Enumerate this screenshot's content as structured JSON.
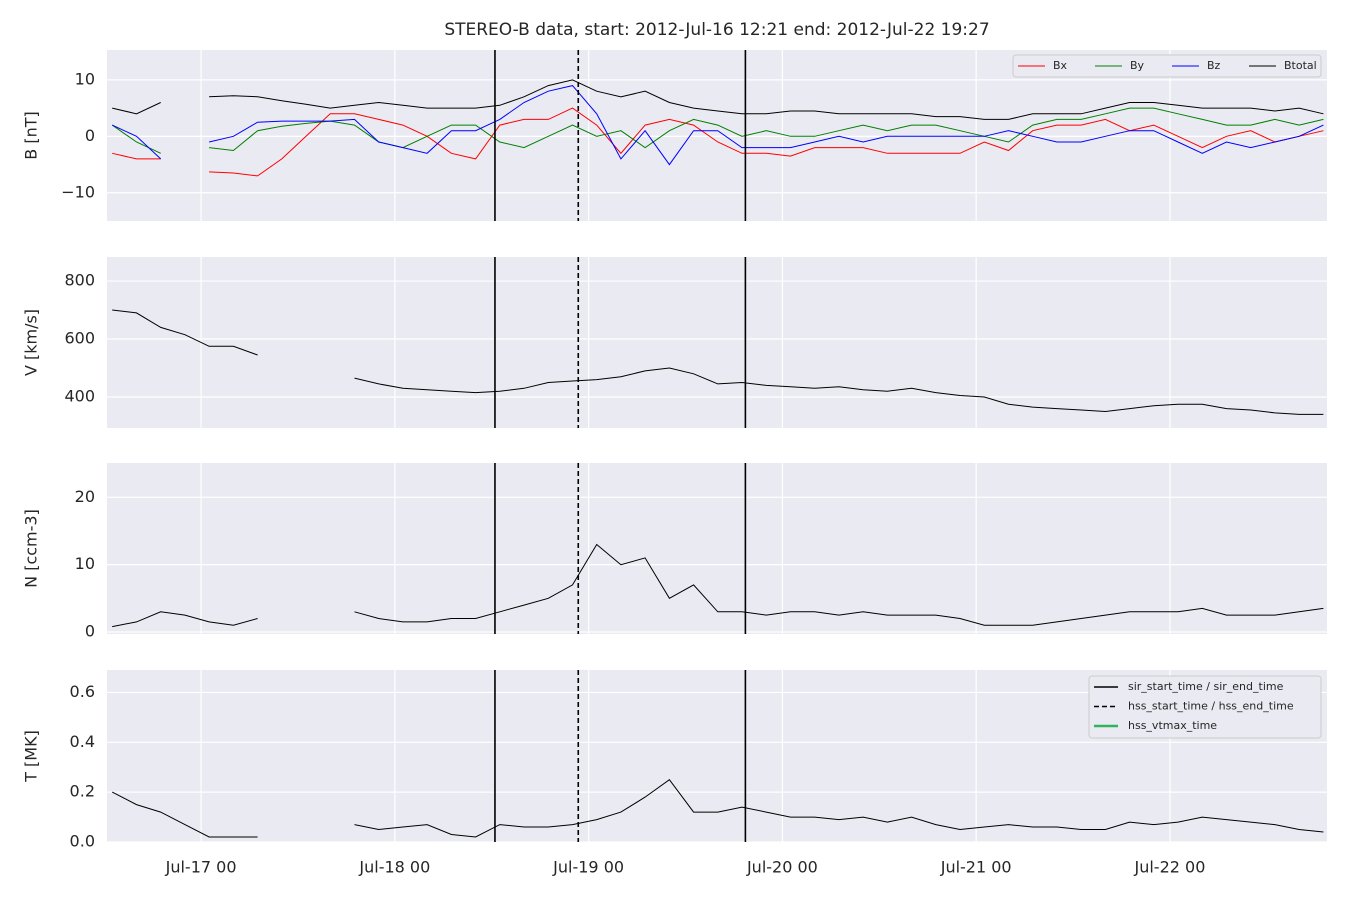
{
  "chart_data": [
    {
      "type": "line",
      "title": "STEREO-B data, start: 2012-Jul-16 12:21  end: 2012-Jul-22 19:27",
      "ylabel": "B [nT]",
      "grid": true,
      "legend": "upper right",
      "xlim": [
        "Jul-16 12:21",
        "Jul-22 19:27"
      ],
      "ylim": [
        -15,
        15.3
      ],
      "yticks": [
        {
          "value": -10,
          "label": "−10"
        },
        0,
        10
      ],
      "x": [
        "Jul-16 13",
        "Jul-16 16",
        "Jul-16 19",
        "Jul-16 22",
        "Jul-17 01",
        "Jul-17 04",
        "Jul-17 07",
        "Jul-17 10",
        "Jul-17 13",
        "Jul-17 16",
        "Jul-17 19",
        "Jul-17 22",
        "Jul-18 01",
        "Jul-18 04",
        "Jul-18 07",
        "Jul-18 10",
        "Jul-18 13",
        "Jul-18 16",
        "Jul-18 19",
        "Jul-18 22",
        "Jul-19 01",
        "Jul-19 04",
        "Jul-19 07",
        "Jul-19 10",
        "Jul-19 13",
        "Jul-19 16",
        "Jul-19 19",
        "Jul-19 22",
        "Jul-20 01",
        "Jul-20 04",
        "Jul-20 07",
        "Jul-20 10",
        "Jul-20 13",
        "Jul-20 16",
        "Jul-20 19",
        "Jul-20 22",
        "Jul-21 01",
        "Jul-21 04",
        "Jul-21 07",
        "Jul-21 10",
        "Jul-21 13",
        "Jul-21 16",
        "Jul-21 19",
        "Jul-21 22",
        "Jul-22 01",
        "Jul-22 04",
        "Jul-22 07",
        "Jul-22 10",
        "Jul-22 13",
        "Jul-22 16",
        "Jul-22 19"
      ],
      "series": [
        {
          "name": "Bx",
          "color": "#ff0000",
          "values": [
            -3,
            -4,
            -4,
            null,
            -6.3,
            -6.5,
            -7,
            -4,
            0,
            4,
            4,
            3,
            2,
            0,
            -3,
            -4,
            2,
            3,
            3,
            5,
            2,
            -3,
            2,
            3,
            2,
            -1,
            -3,
            -3,
            -3.5,
            -2,
            -2,
            -2,
            -3,
            -3,
            -3,
            -3,
            -1,
            -2.5,
            1,
            2,
            2,
            3,
            1,
            2,
            0,
            -2,
            0,
            1,
            -1,
            0,
            1
          ]
        },
        {
          "name": "By",
          "color": "#008000",
          "values": [
            2,
            -1,
            -3,
            null,
            -2,
            -2.5,
            1,
            1.8,
            2.3,
            2.7,
            2,
            -1,
            -2,
            0,
            2,
            2,
            -1,
            -2,
            0,
            2,
            0,
            1,
            -2,
            1,
            3,
            2,
            0,
            1,
            0,
            0,
            1,
            2,
            1,
            2,
            2,
            1,
            0,
            -1,
            2,
            3,
            3,
            4,
            5,
            5,
            4,
            3,
            2,
            2,
            3,
            2,
            3
          ]
        },
        {
          "name": "Bz",
          "color": "#0000ff",
          "values": [
            2,
            0,
            -4,
            null,
            -1,
            0,
            2.5,
            2.7,
            2.7,
            2.7,
            3,
            -1,
            -2,
            -3,
            1,
            1,
            3,
            6,
            8,
            9,
            4,
            -4,
            1,
            -5,
            1,
            1,
            -2,
            -2,
            -2,
            -1,
            0,
            -1,
            0,
            0,
            0,
            0,
            0,
            1,
            0,
            -1,
            -1,
            0,
            1,
            1,
            -1,
            -3,
            -1,
            -2,
            -1,
            0,
            2
          ]
        },
        {
          "name": "Btotal",
          "color": "#000000",
          "values": [
            5,
            4,
            6,
            null,
            7,
            7.2,
            7,
            6.3,
            5.7,
            5,
            5.5,
            6,
            5.5,
            5,
            5,
            5,
            5.5,
            7,
            9,
            10,
            8,
            7,
            8,
            6,
            5,
            4.5,
            4,
            4,
            4.5,
            4.5,
            4,
            4,
            4,
            4,
            3.5,
            3.5,
            3,
            3,
            4,
            4,
            4,
            5,
            6,
            6,
            5.5,
            5,
            5,
            5,
            4.5,
            5,
            4
          ]
        }
      ]
    },
    {
      "type": "line",
      "ylabel": "V [km/s]",
      "grid": true,
      "color": "#000000",
      "xlim": [
        "Jul-16 12:21",
        "Jul-22 19:27"
      ],
      "ylim": [
        293,
        883
      ],
      "yticks": [
        400,
        600,
        800
      ],
      "x": [
        "Jul-16 13",
        "Jul-16 16",
        "Jul-16 19",
        "Jul-16 22",
        "Jul-17 01",
        "Jul-17 04",
        "Jul-17 07",
        "Jul-17 10",
        "Jul-17 13",
        "Jul-17 16",
        "Jul-17 19",
        "Jul-17 22",
        "Jul-18 01",
        "Jul-18 04",
        "Jul-18 07",
        "Jul-18 10",
        "Jul-18 13",
        "Jul-18 16",
        "Jul-18 19",
        "Jul-18 22",
        "Jul-19 01",
        "Jul-19 04",
        "Jul-19 07",
        "Jul-19 10",
        "Jul-19 13",
        "Jul-19 16",
        "Jul-19 19",
        "Jul-19 22",
        "Jul-20 01",
        "Jul-20 04",
        "Jul-20 07",
        "Jul-20 10",
        "Jul-20 13",
        "Jul-20 16",
        "Jul-20 19",
        "Jul-20 22",
        "Jul-21 01",
        "Jul-21 04",
        "Jul-21 07",
        "Jul-21 10",
        "Jul-21 13",
        "Jul-21 16",
        "Jul-21 19",
        "Jul-21 22",
        "Jul-22 01",
        "Jul-22 04",
        "Jul-22 07",
        "Jul-22 10",
        "Jul-22 13",
        "Jul-22 16",
        "Jul-22 19"
      ],
      "values": [
        700,
        690,
        640,
        615,
        575,
        575,
        545,
        null,
        null,
        null,
        465,
        445,
        430,
        425,
        420,
        415,
        420,
        430,
        450,
        455,
        460,
        470,
        490,
        500,
        480,
        445,
        450,
        440,
        435,
        430,
        435,
        425,
        420,
        430,
        415,
        405,
        400,
        375,
        365,
        360,
        355,
        350,
        360,
        370,
        375,
        375,
        360,
        355,
        345,
        340,
        340
      ]
    },
    {
      "type": "line",
      "ylabel": "N [ccm-3]",
      "grid": true,
      "color": "#000000",
      "xlim": [
        "Jul-16 12:21",
        "Jul-22 19:27"
      ],
      "ylim": [
        -0.3,
        25.1
      ],
      "yticks": [
        0,
        10,
        20
      ],
      "x": [
        "Jul-16 13",
        "Jul-16 16",
        "Jul-16 19",
        "Jul-16 22",
        "Jul-17 01",
        "Jul-17 04",
        "Jul-17 07",
        "Jul-17 10",
        "Jul-17 13",
        "Jul-17 16",
        "Jul-17 19",
        "Jul-17 22",
        "Jul-18 01",
        "Jul-18 04",
        "Jul-18 07",
        "Jul-18 10",
        "Jul-18 13",
        "Jul-18 16",
        "Jul-18 19",
        "Jul-18 22",
        "Jul-19 01",
        "Jul-19 04",
        "Jul-19 07",
        "Jul-19 10",
        "Jul-19 13",
        "Jul-19 16",
        "Jul-19 19",
        "Jul-19 22",
        "Jul-20 01",
        "Jul-20 04",
        "Jul-20 07",
        "Jul-20 10",
        "Jul-20 13",
        "Jul-20 16",
        "Jul-20 19",
        "Jul-20 22",
        "Jul-21 01",
        "Jul-21 04",
        "Jul-21 07",
        "Jul-21 10",
        "Jul-21 13",
        "Jul-21 16",
        "Jul-21 19",
        "Jul-21 22",
        "Jul-22 01",
        "Jul-22 04",
        "Jul-22 07",
        "Jul-22 10",
        "Jul-22 13",
        "Jul-22 16",
        "Jul-22 19"
      ],
      "values": [
        0.8,
        1.5,
        3,
        2.5,
        1.5,
        1,
        2,
        null,
        null,
        null,
        3,
        2,
        1.5,
        1.5,
        2,
        2,
        3,
        4,
        5,
        7,
        13,
        10,
        11,
        5,
        7,
        3,
        3,
        2.5,
        3,
        3,
        2.5,
        3,
        2.5,
        2.5,
        2.5,
        2,
        1,
        1,
        1,
        1.5,
        2,
        2.5,
        3,
        3,
        3,
        3.5,
        2.5,
        2.5,
        2.5,
        3,
        3.5
      ]
    },
    {
      "type": "line",
      "ylabel": "T [MK]",
      "grid": true,
      "color": "#000000",
      "legend": "upper right",
      "xlim": [
        "Jul-16 12:21",
        "Jul-22 19:27"
      ],
      "ylim": [
        0,
        0.69
      ],
      "yticks": [
        {
          "value": 0,
          "label": "0.0"
        },
        0.2,
        0.4,
        0.6
      ],
      "xticks": [
        "Jul-17 00",
        "Jul-18 00",
        "Jul-19 00",
        "Jul-20 00",
        "Jul-21 00",
        "Jul-22 00"
      ],
      "x": [
        "Jul-16 13",
        "Jul-16 16",
        "Jul-16 19",
        "Jul-16 22",
        "Jul-17 01",
        "Jul-17 04",
        "Jul-17 07",
        "Jul-17 10",
        "Jul-17 13",
        "Jul-17 16",
        "Jul-17 19",
        "Jul-17 22",
        "Jul-18 01",
        "Jul-18 04",
        "Jul-18 07",
        "Jul-18 10",
        "Jul-18 13",
        "Jul-18 16",
        "Jul-18 19",
        "Jul-18 22",
        "Jul-19 01",
        "Jul-19 04",
        "Jul-19 07",
        "Jul-19 10",
        "Jul-19 13",
        "Jul-19 16",
        "Jul-19 19",
        "Jul-19 22",
        "Jul-20 01",
        "Jul-20 04",
        "Jul-20 07",
        "Jul-20 10",
        "Jul-20 13",
        "Jul-20 16",
        "Jul-20 19",
        "Jul-20 22",
        "Jul-21 01",
        "Jul-21 04",
        "Jul-21 07",
        "Jul-21 10",
        "Jul-21 13",
        "Jul-21 16",
        "Jul-21 19",
        "Jul-21 22",
        "Jul-22 01",
        "Jul-22 04",
        "Jul-22 07",
        "Jul-22 10",
        "Jul-22 13",
        "Jul-22 16",
        "Jul-22 19"
      ],
      "values": [
        0.2,
        0.15,
        0.12,
        0.07,
        0.02,
        0.02,
        0.02,
        null,
        null,
        null,
        0.07,
        0.05,
        0.06,
        0.07,
        0.03,
        0.02,
        0.07,
        0.06,
        0.06,
        0.07,
        0.09,
        0.12,
        0.18,
        0.25,
        0.12,
        0.12,
        0.14,
        0.12,
        0.1,
        0.1,
        0.09,
        0.1,
        0.08,
        0.1,
        0.07,
        0.05,
        0.06,
        0.07,
        0.06,
        0.06,
        0.05,
        0.05,
        0.08,
        0.07,
        0.08,
        0.1,
        0.09,
        0.08,
        0.07,
        0.05,
        0.04
      ],
      "markers": [
        {
          "name": "sir_start_time / sir_end_time",
          "color": "#000000",
          "linestyle": "solid",
          "times": [
            "Jul-18 12:24",
            "Jul-19 19:25"
          ]
        },
        {
          "name": "hss_start_time / hss_end_time",
          "color": "#000000",
          "linestyle": "dashed",
          "times": [
            "Jul-18 22:43"
          ]
        },
        {
          "name": "hss_vtmax_time",
          "color": "#31b35b",
          "linestyle": "solid",
          "times": []
        }
      ]
    }
  ]
}
